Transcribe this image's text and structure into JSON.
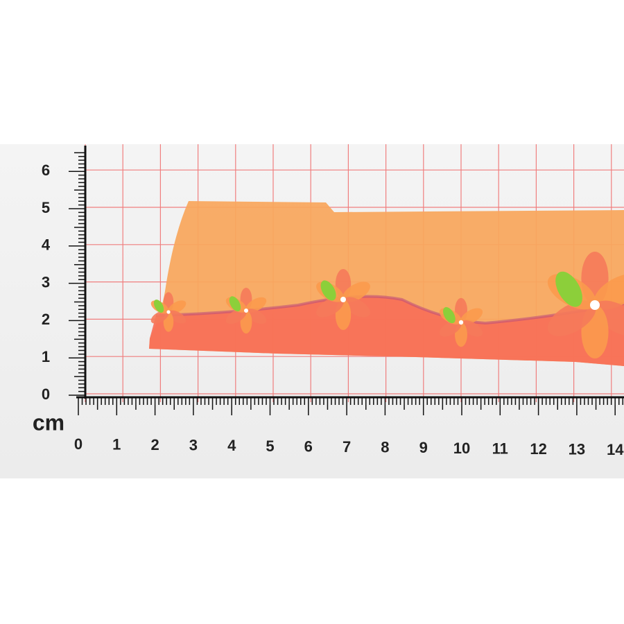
{
  "vertical_ruler": {
    "labels": [
      "0",
      "1",
      "2",
      "3",
      "4",
      "5",
      "6"
    ]
  },
  "horizontal_ruler": {
    "unit": "cm",
    "labels": [
      "0",
      "1",
      "2",
      "3",
      "4",
      "5",
      "6",
      "7",
      "8",
      "9",
      "10",
      "11",
      "12",
      "13",
      "14"
    ]
  }
}
